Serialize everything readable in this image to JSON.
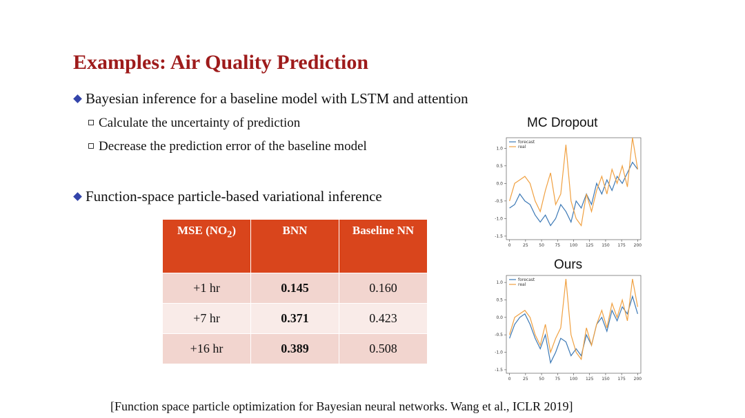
{
  "title": "Examples: Air Quality Prediction",
  "bullets": [
    {
      "text": "Bayesian inference for a baseline model with LSTM and attention",
      "sub": [
        "Calculate the uncertainty of prediction",
        "Decrease the prediction error of the baseline model"
      ]
    },
    {
      "text": "Function-space particle-based variational inference",
      "sub": []
    }
  ],
  "table": {
    "header": [
      [
        "MSE (NO",
        "2",
        ")"
      ],
      "BNN",
      "Baseline NN"
    ],
    "rows": [
      [
        "+1 hr",
        "0.145",
        "0.160"
      ],
      [
        "+7 hr",
        "0.371",
        "0.423"
      ],
      [
        "+16 hr",
        "0.389",
        "0.508"
      ]
    ]
  },
  "chart_data": [
    {
      "type": "line",
      "title": "MC Dropout",
      "x": [
        0,
        8,
        16,
        24,
        32,
        40,
        48,
        56,
        64,
        72,
        80,
        88,
        96,
        104,
        112,
        120,
        128,
        136,
        144,
        152,
        160,
        168,
        176,
        184,
        192,
        200
      ],
      "series": [
        {
          "name": "forecast",
          "color": "#3b78b5",
          "values": [
            -0.7,
            -0.6,
            -0.3,
            -0.5,
            -0.6,
            -0.9,
            -1.1,
            -0.9,
            -1.2,
            -1.0,
            -0.6,
            -0.8,
            -1.1,
            -0.5,
            -0.7,
            -0.3,
            -0.6,
            0.0,
            -0.3,
            0.1,
            -0.2,
            0.2,
            0.0,
            0.3,
            0.6,
            0.4
          ]
        },
        {
          "name": "real",
          "color": "#f0a040",
          "values": [
            -0.5,
            0.0,
            0.1,
            0.2,
            0.0,
            -0.5,
            -0.8,
            -0.2,
            0.3,
            -0.6,
            -0.3,
            1.1,
            -0.5,
            -1.0,
            -1.2,
            -0.3,
            -0.8,
            -0.2,
            0.2,
            -0.3,
            0.4,
            0.0,
            0.5,
            -0.1,
            1.3,
            0.4
          ]
        }
      ],
      "xlim": [
        -5,
        205
      ],
      "ylim": [
        -1.6,
        1.3
      ],
      "xticks": [
        0,
        25,
        50,
        75,
        100,
        125,
        150,
        175,
        200
      ],
      "yticks": [
        {
          "value": -1.5,
          "label": "-1.5"
        },
        {
          "value": -1,
          "label": "-1.0"
        },
        {
          "value": -0.5,
          "label": "-0.5"
        },
        {
          "value": 0,
          "label": "0.0"
        },
        {
          "value": 0.5,
          "label": "0.5"
        },
        {
          "value": 1,
          "label": "1.0"
        }
      ]
    },
    {
      "type": "line",
      "title": "Ours",
      "x": [
        0,
        8,
        16,
        24,
        32,
        40,
        48,
        56,
        64,
        72,
        80,
        88,
        96,
        104,
        112,
        120,
        128,
        136,
        144,
        152,
        160,
        168,
        176,
        184,
        192,
        200
      ],
      "series": [
        {
          "name": "forecast",
          "color": "#3b78b5",
          "values": [
            -0.6,
            -0.2,
            0.0,
            0.1,
            -0.2,
            -0.6,
            -0.9,
            -0.5,
            -1.3,
            -1.0,
            -0.6,
            -0.7,
            -1.1,
            -0.9,
            -1.1,
            -0.5,
            -0.8,
            -0.2,
            0.0,
            -0.4,
            0.2,
            -0.1,
            0.3,
            0.1,
            0.6,
            0.1
          ]
        },
        {
          "name": "real",
          "color": "#f0a040",
          "values": [
            -0.5,
            0.0,
            0.1,
            0.2,
            0.0,
            -0.5,
            -0.8,
            -0.2,
            -1.0,
            -0.6,
            -0.3,
            1.1,
            -0.5,
            -1.0,
            -1.2,
            -0.3,
            -0.8,
            -0.2,
            0.2,
            -0.3,
            0.4,
            0.0,
            0.5,
            -0.1,
            1.1,
            0.3
          ]
        }
      ],
      "xlim": [
        -5,
        205
      ],
      "ylim": [
        -1.6,
        1.2
      ],
      "xticks": [
        0,
        25,
        50,
        75,
        100,
        125,
        150,
        175,
        200
      ],
      "yticks": [
        {
          "value": -1.5,
          "label": "-1.5"
        },
        {
          "value": -1,
          "label": "-1.0"
        },
        {
          "value": -0.5,
          "label": "-0.5"
        },
        {
          "value": 0,
          "label": "0.0"
        },
        {
          "value": 0.5,
          "label": "0.5"
        },
        {
          "value": 1,
          "label": "1.0"
        }
      ]
    }
  ],
  "citation": "[Function space particle optimization for Bayesian neural networks. Wang et al., ICLR 2019]"
}
